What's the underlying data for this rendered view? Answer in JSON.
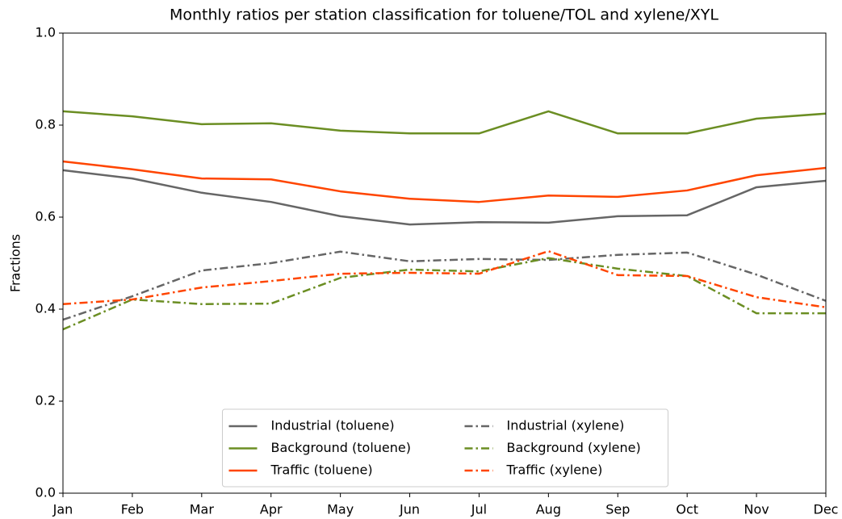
{
  "chart_data": {
    "type": "line",
    "title": "Monthly ratios per station classification for toluene/TOL and xylene/XYL",
    "y_label": "Fractions",
    "categories": [
      "Jan",
      "Feb",
      "Mar",
      "Apr",
      "May",
      "Jun",
      "Jul",
      "Aug",
      "Sep",
      "Oct",
      "Nov",
      "Dec"
    ],
    "ylim": [
      0,
      1
    ],
    "yticks": [
      {
        "value": 0,
        "label": "0.0"
      },
      0.2,
      0.4,
      0.6,
      0.8,
      {
        "value": 1,
        "label": "1.0"
      }
    ],
    "grid": false,
    "legend_position": "lower center",
    "series": [
      {
        "name": "Industrial (toluene)",
        "color": "#666666",
        "linestyle": "solid",
        "values": [
          0.702,
          0.684,
          0.653,
          0.633,
          0.602,
          0.584,
          0.589,
          0.588,
          0.602,
          0.604,
          0.665,
          0.679
        ]
      },
      {
        "name": "Background (toluene)",
        "color": "#6b8e23",
        "linestyle": "solid",
        "values": [
          0.83,
          0.819,
          0.802,
          0.804,
          0.788,
          0.782,
          0.782,
          0.83,
          0.782,
          0.782,
          0.814,
          0.825
        ]
      },
      {
        "name": "Traffic (toluene)",
        "color": "#ff4500",
        "linestyle": "solid",
        "values": [
          0.721,
          0.704,
          0.684,
          0.682,
          0.656,
          0.64,
          0.633,
          0.647,
          0.644,
          0.658,
          0.691,
          0.707
        ]
      },
      {
        "name": "Industrial (xylene)",
        "color": "#666666",
        "linestyle": "dashdot",
        "values": [
          0.377,
          0.428,
          0.484,
          0.5,
          0.525,
          0.504,
          0.509,
          0.507,
          0.518,
          0.523,
          0.475,
          0.418
        ]
      },
      {
        "name": "Background (xylene)",
        "color": "#6b8e23",
        "linestyle": "dashdot",
        "values": [
          0.356,
          0.421,
          0.411,
          0.412,
          0.468,
          0.486,
          0.482,
          0.511,
          0.488,
          0.472,
          0.391,
          0.391
        ]
      },
      {
        "name": "Traffic (xylene)",
        "color": "#ff4500",
        "linestyle": "dashdot",
        "values": [
          0.411,
          0.421,
          0.447,
          0.461,
          0.477,
          0.479,
          0.477,
          0.526,
          0.474,
          0.472,
          0.426,
          0.404
        ]
      }
    ]
  }
}
